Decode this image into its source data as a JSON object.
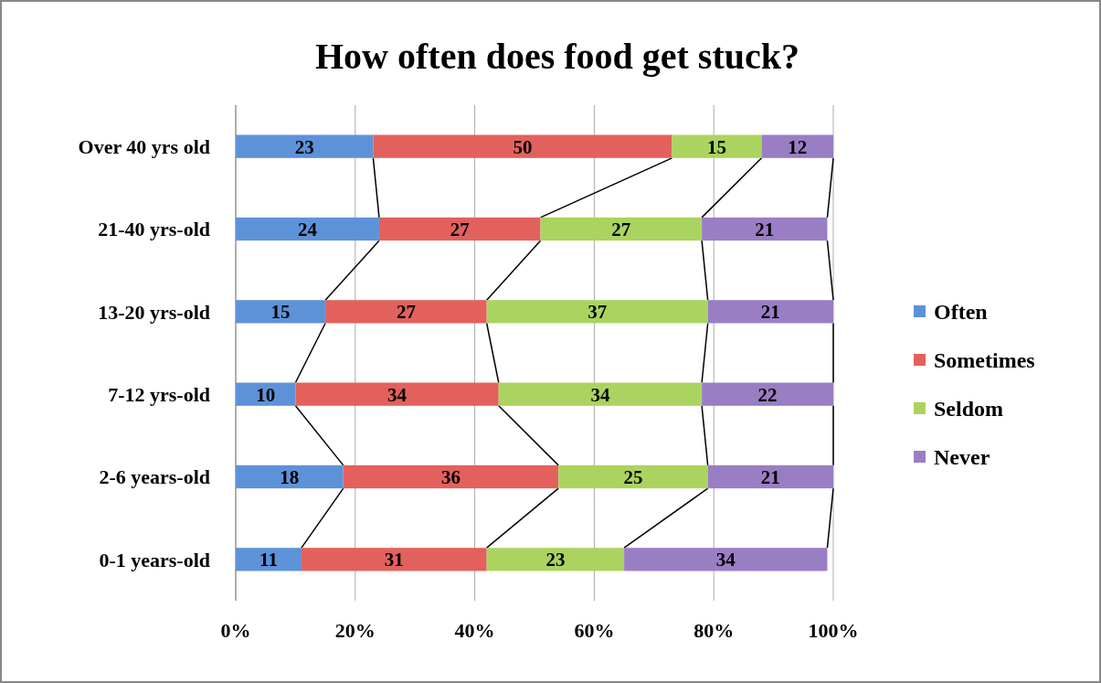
{
  "chart_data": {
    "type": "bar",
    "orientation": "horizontal",
    "stacked": true,
    "title": "How often does food get stuck?",
    "categories": [
      "Over 40 yrs old",
      "21-40 yrs-old",
      "13-20 yrs-old",
      "7-12 yrs-old",
      "2-6 years-old",
      "0-1 years-old"
    ],
    "series": [
      {
        "name": "Often",
        "color": "#5e92d8",
        "values": [
          23,
          24,
          15,
          10,
          18,
          11
        ]
      },
      {
        "name": "Sometimes",
        "color": "#e2615d",
        "values": [
          50,
          27,
          27,
          34,
          36,
          31
        ]
      },
      {
        "name": "Seldom",
        "color": "#aad45f",
        "values": [
          15,
          27,
          37,
          34,
          25,
          23
        ]
      },
      {
        "name": "Never",
        "color": "#9a7ec4",
        "values": [
          12,
          21,
          21,
          22,
          21,
          34
        ]
      }
    ],
    "xlim": [
      0,
      100
    ],
    "xticks": [
      {
        "value": 0,
        "label": "0%"
      },
      {
        "value": 20,
        "label": "20%"
      },
      {
        "value": 40,
        "label": "40%"
      },
      {
        "value": 60,
        "label": "60%"
      },
      {
        "value": 80,
        "label": "80%"
      },
      {
        "value": 100,
        "label": "100%"
      }
    ],
    "grid": "x",
    "legend": "right",
    "data_labels": true
  }
}
